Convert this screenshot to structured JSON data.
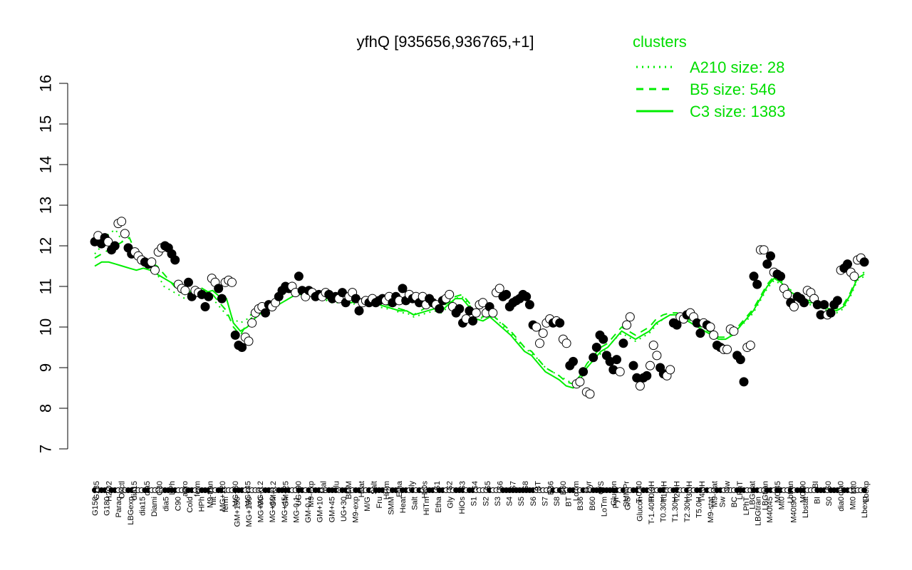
{
  "chart_data": {
    "type": "scatter",
    "title": "yfhQ [935656,936765,+1]",
    "ylim": [
      7,
      16
    ],
    "y_ticks": [
      7,
      8,
      9,
      10,
      11,
      12,
      13,
      14,
      15,
      16
    ],
    "legend": {
      "title": "clusters",
      "position": "top-right",
      "entries": [
        {
          "label": "A210 size: 28",
          "style": "dotted"
        },
        {
          "label": "B5 size: 546",
          "style": "dashed"
        },
        {
          "label": "C3 size: 1383",
          "style": "solid"
        }
      ]
    },
    "colors": {
      "lines": "#00ee00",
      "points_filled": "#000000",
      "points_open": "#ffffff"
    },
    "x_labels_top": [
      "G135",
      "H2O2",
      "Oxctl",
      "dia15",
      "dia5",
      "C30",
      "LPh",
      "aero",
      "ferm",
      "M9-tran",
      "MG+120",
      "MG+60",
      "MG+45",
      "MG-0.2",
      "GM-0.2",
      "GM+25",
      "UG+90",
      "M9-exp",
      "Mal",
      "Glu",
      "BMM",
      "Heat",
      "Salt",
      "HiTm",
      "Etha",
      "Gly",
      "HiOs",
      "S1",
      "S2",
      "S3",
      "S4",
      "S5",
      "S6",
      "S7",
      "S8",
      "BT",
      "B36",
      "B60",
      "LoTm",
      "Pyr",
      "G/S",
      "Glucon",
      "SMMPr",
      "T-0.40",
      "T0.0H",
      "T1.0H",
      "T2.0H",
      "T3.0H",
      "T4.0H",
      "M9-stat",
      "Sw",
      "LPhT",
      "LBGstat",
      "LBGtran",
      "M0t45",
      "Lbtran",
      "M0t90",
      "BI",
      "S0",
      "dia0",
      "Mt0",
      "Lbexp"
    ],
    "x_labels_bottom": [
      "G150",
      "G180",
      "Paraq",
      "LBGexp",
      "dia15",
      "Diami",
      "dia5",
      "C90",
      "Cold",
      "HPh",
      "nit",
      "ferm",
      "GM+150",
      "MG+150",
      "MG+90",
      "MG+60",
      "MG+45",
      "MG-0.1",
      "GM-0.1",
      "GM+10",
      "GM+45",
      "UG+30",
      "M9-exp",
      "M/G",
      "Fru",
      "SMM",
      "Heat",
      "Salt",
      "HiTm",
      "Etha",
      "Gly",
      "HiOs",
      "S1",
      "S2",
      "S3",
      "S4",
      "S5",
      "S6",
      "S7",
      "S8",
      "BT",
      "B36",
      "B60",
      "LoTm",
      "Pyr",
      "G/S",
      "Glucon",
      "T-1.40H",
      "T0.30H",
      "T1.30H",
      "T2.30H",
      "T5.0H",
      "M9-stat",
      "Sw",
      "BC",
      "LPhT",
      "LBGtran",
      "M40t45",
      "Mt0",
      "M40t90",
      "Lbstat",
      "BI",
      "S0",
      "dia0",
      "Mt0",
      "Lbexp"
    ],
    "x_labels_shown": [
      "G150",
      "G135",
      "G180",
      "H2O2",
      "Paraq",
      "Oxctl",
      "LBGexp",
      "dia15",
      "Diami",
      "dia5",
      "C90",
      "C30",
      "Cold",
      "LPh",
      "HPh",
      "aero",
      "nit",
      "ferm",
      "GM+150",
      "M9-tran",
      "MG+150",
      "MG+120",
      "Mal",
      "Fru",
      "Glu",
      "SMM",
      "BMM",
      "Heat",
      "Salt",
      "HiTm",
      "Etha",
      "Gly",
      "HiOs",
      "S1",
      "S2",
      "S3",
      "S4",
      "S5",
      "S6",
      "S7",
      "S8",
      "BT",
      "B36",
      "B60",
      "LoTm",
      "Pyr",
      "G/S",
      "Glucon",
      "SMMPr",
      "T1.0H",
      "T2.0H",
      "T4.0H",
      "M9-stat",
      "BC",
      "Sw",
      "LPhT",
      "LBGtran",
      "LBGstat",
      "M40t45",
      "M0t45",
      "Lbtran",
      "Mt0",
      "M40t90",
      "M0t90",
      "Lbstat",
      "BI",
      "S0",
      "dia0",
      "M0t45",
      "Mt0",
      "Lbexp"
    ],
    "series": [
      {
        "name": "C3 size: 1383",
        "style": "solid",
        "y": [
          11.5,
          11.6,
          11.6,
          11.55,
          11.5,
          11.45,
          11.4,
          11.45,
          11.4,
          11.3,
          11.2,
          11.1,
          11.0,
          10.9,
          10.85,
          10.8,
          10.85,
          10.9,
          10.75,
          10.7,
          10.1,
          9.9,
          10.0,
          10.2,
          10.35,
          10.45,
          10.5,
          10.6,
          10.7,
          10.8,
          10.8,
          10.8,
          10.75,
          10.7,
          10.7,
          10.65,
          10.6,
          10.6,
          10.65,
          10.6,
          10.6,
          10.55,
          10.5,
          10.45,
          10.4,
          10.4,
          10.3,
          10.35,
          10.4,
          10.45,
          10.4,
          10.55,
          10.7,
          10.7,
          10.5,
          10.2,
          10.15,
          10.25,
          10.1,
          9.95,
          9.8,
          9.6,
          9.4,
          9.3,
          9.1,
          8.9,
          8.8,
          8.7,
          8.55,
          8.5,
          8.7,
          9.0,
          9.2,
          9.4,
          9.5,
          9.7,
          9.9,
          9.8,
          9.7,
          9.8,
          9.9,
          10.1,
          10.2,
          10.3,
          10.3,
          10.2,
          10.1,
          10.0,
          9.9,
          9.8,
          9.7,
          9.7,
          9.8,
          10.0,
          10.2,
          10.4,
          10.7,
          11.0,
          11.2,
          11.1,
          10.9,
          10.8,
          10.7,
          10.6,
          10.6,
          10.5,
          10.45,
          10.4,
          10.5,
          10.8,
          11.2,
          11.3
        ]
      },
      {
        "name": "B5 size: 546",
        "style": "dashed",
        "y": [
          11.7,
          11.8,
          11.9,
          12.0,
          12.1,
          12.2,
          11.8,
          11.7,
          11.6,
          11.5,
          11.3,
          11.1,
          10.9,
          10.8,
          10.9,
          11.0,
          10.9,
          10.8,
          10.6,
          10.4,
          10.0,
          9.8,
          10.1,
          10.3,
          10.4,
          10.5,
          10.6,
          10.8,
          10.9,
          10.9,
          10.85,
          10.8,
          10.8,
          10.75,
          10.7,
          10.7,
          10.65,
          10.6,
          10.7,
          10.65,
          10.65,
          10.6,
          10.55,
          10.5,
          10.45,
          10.4,
          10.3,
          10.4,
          10.5,
          10.55,
          10.5,
          10.6,
          10.75,
          10.8,
          10.6,
          10.3,
          10.25,
          10.35,
          10.2,
          10.05,
          9.9,
          9.7,
          9.5,
          9.4,
          9.2,
          9.0,
          8.9,
          8.8,
          8.65,
          8.6,
          8.8,
          9.1,
          9.3,
          9.5,
          9.6,
          9.8,
          10.0,
          9.9,
          9.8,
          9.9,
          10.0,
          10.2,
          10.3,
          10.35,
          10.35,
          10.25,
          10.15,
          10.05,
          9.95,
          9.85,
          9.75,
          9.75,
          9.85,
          10.05,
          10.25,
          10.45,
          10.75,
          11.05,
          11.25,
          11.15,
          10.95,
          10.85,
          10.75,
          10.65,
          10.65,
          10.55,
          10.5,
          10.45,
          10.55,
          10.85,
          11.25,
          11.35
        ]
      },
      {
        "name": "A210 size: 28",
        "style": "dotted",
        "y": [
          11.8,
          12.0,
          12.3,
          12.4,
          12.1,
          11.9,
          11.7,
          11.6,
          11.5,
          11.3,
          11.0,
          10.9,
          10.8,
          10.7,
          10.8,
          10.9,
          10.9,
          10.7,
          10.5,
          10.3,
          10.2,
          10.1,
          10.2,
          10.4,
          10.5,
          10.6,
          10.7,
          10.8,
          10.85,
          10.9,
          10.8,
          10.8,
          10.7,
          10.7,
          10.6,
          10.6,
          10.6,
          10.55,
          10.6,
          10.6,
          10.55,
          10.5,
          10.45,
          10.45,
          10.35,
          10.35,
          10.25,
          10.3,
          10.35,
          10.4,
          10.35,
          10.5,
          10.7,
          10.75,
          10.55,
          10.3,
          10.2,
          10.3,
          10.2,
          10.0,
          9.85,
          9.65,
          9.5,
          9.35,
          9.2,
          9.0,
          8.9,
          8.8,
          8.7,
          8.6,
          8.75,
          9.0,
          9.2,
          9.35,
          9.5,
          9.7,
          9.85,
          9.75,
          9.65,
          9.75,
          9.85,
          10.05,
          10.2,
          10.3,
          10.3,
          10.2,
          10.1,
          10.0,
          9.9,
          9.8,
          9.7,
          9.7,
          9.8,
          10.0,
          10.15,
          10.35,
          10.65,
          10.95,
          11.15,
          11.05,
          10.85,
          10.75,
          10.65,
          10.55,
          10.55,
          10.45,
          10.4,
          10.35,
          10.45,
          10.75,
          11.15,
          11.25
        ]
      }
    ],
    "points": [
      [
        12.1,
        1
      ],
      [
        12.25,
        0
      ],
      [
        12.05,
        1
      ],
      [
        12.2,
        1
      ],
      [
        12.1,
        0
      ],
      [
        11.9,
        1
      ],
      [
        12.0,
        1
      ],
      [
        12.55,
        0
      ],
      [
        12.6,
        0
      ],
      [
        12.3,
        0
      ],
      [
        11.95,
        1
      ],
      [
        11.8,
        1
      ],
      [
        11.85,
        0
      ],
      [
        11.75,
        0
      ],
      [
        11.65,
        0
      ],
      [
        11.6,
        1
      ],
      [
        11.55,
        1
      ],
      [
        11.6,
        0
      ],
      [
        11.4,
        0
      ],
      [
        11.85,
        0
      ],
      [
        11.95,
        0
      ],
      [
        12.0,
        1
      ],
      [
        11.95,
        1
      ],
      [
        11.8,
        1
      ],
      [
        11.65,
        1
      ],
      [
        11.05,
        0
      ],
      [
        10.95,
        0
      ],
      [
        10.9,
        0
      ],
      [
        11.1,
        1
      ],
      [
        10.75,
        1
      ],
      [
        10.9,
        0
      ],
      [
        10.85,
        0
      ],
      [
        10.8,
        1
      ],
      [
        10.5,
        1
      ],
      [
        10.75,
        1
      ],
      [
        11.2,
        0
      ],
      [
        11.1,
        0
      ],
      [
        10.95,
        1
      ],
      [
        10.7,
        1
      ],
      [
        11.1,
        0
      ],
      [
        11.15,
        0
      ],
      [
        11.1,
        0
      ],
      [
        9.8,
        1
      ],
      [
        9.55,
        1
      ],
      [
        9.5,
        1
      ],
      [
        9.75,
        0
      ],
      [
        9.65,
        0
      ],
      [
        10.1,
        0
      ],
      [
        10.35,
        0
      ],
      [
        10.45,
        0
      ],
      [
        10.5,
        0
      ],
      [
        10.35,
        1
      ],
      [
        10.55,
        1
      ],
      [
        10.5,
        0
      ],
      [
        10.6,
        0
      ],
      [
        10.75,
        1
      ],
      [
        10.9,
        1
      ],
      [
        11.0,
        1
      ],
      [
        10.95,
        1
      ],
      [
        11.0,
        0
      ],
      [
        10.85,
        0
      ],
      [
        11.25,
        1
      ],
      [
        10.9,
        1
      ],
      [
        10.75,
        0
      ],
      [
        10.9,
        1
      ],
      [
        10.85,
        0
      ],
      [
        10.75,
        1
      ],
      [
        10.8,
        1
      ],
      [
        10.75,
        0
      ],
      [
        10.85,
        0
      ],
      [
        10.8,
        1
      ],
      [
        10.7,
        1
      ],
      [
        10.75,
        1
      ],
      [
        10.7,
        0
      ],
      [
        10.85,
        1
      ],
      [
        10.6,
        1
      ],
      [
        10.75,
        0
      ],
      [
        10.85,
        0
      ],
      [
        10.7,
        1
      ],
      [
        10.4,
        1
      ],
      [
        10.6,
        0
      ],
      [
        10.65,
        0
      ],
      [
        10.6,
        1
      ],
      [
        10.7,
        0
      ],
      [
        10.6,
        1
      ],
      [
        10.65,
        1
      ],
      [
        10.7,
        1
      ],
      [
        10.65,
        0
      ],
      [
        10.75,
        0
      ],
      [
        10.6,
        1
      ],
      [
        10.75,
        1
      ],
      [
        10.65,
        0
      ],
      [
        10.95,
        1
      ],
      [
        10.65,
        1
      ],
      [
        10.8,
        0
      ],
      [
        10.7,
        1
      ],
      [
        10.75,
        0
      ],
      [
        10.6,
        1
      ],
      [
        10.75,
        0
      ],
      [
        10.55,
        0
      ],
      [
        10.7,
        1
      ],
      [
        10.6,
        1
      ],
      [
        10.55,
        0
      ],
      [
        10.45,
        1
      ],
      [
        10.65,
        1
      ],
      [
        10.7,
        0
      ],
      [
        10.8,
        0
      ],
      [
        10.5,
        0
      ],
      [
        10.35,
        1
      ],
      [
        10.45,
        1
      ],
      [
        10.1,
        1
      ],
      [
        10.2,
        0
      ],
      [
        10.4,
        1
      ],
      [
        10.15,
        1
      ],
      [
        10.35,
        0
      ],
      [
        10.55,
        0
      ],
      [
        10.6,
        0
      ],
      [
        10.35,
        0
      ],
      [
        10.5,
        1
      ],
      [
        10.35,
        0
      ],
      [
        10.85,
        0
      ],
      [
        10.95,
        0
      ],
      [
        10.75,
        1
      ],
      [
        10.8,
        1
      ],
      [
        10.5,
        1
      ],
      [
        10.6,
        1
      ],
      [
        10.65,
        1
      ],
      [
        10.7,
        1
      ],
      [
        10.8,
        1
      ],
      [
        10.75,
        1
      ],
      [
        10.55,
        1
      ],
      [
        10.05,
        1
      ],
      [
        10.0,
        0
      ],
      [
        9.6,
        0
      ],
      [
        9.85,
        0
      ],
      [
        10.1,
        0
      ],
      [
        10.2,
        0
      ],
      [
        10.1,
        1
      ],
      [
        10.15,
        0
      ],
      [
        10.1,
        1
      ],
      [
        9.7,
        0
      ],
      [
        9.6,
        0
      ],
      [
        9.05,
        1
      ],
      [
        9.15,
        1
      ],
      [
        8.6,
        0
      ],
      [
        8.65,
        0
      ],
      [
        8.9,
        1
      ],
      [
        8.4,
        0
      ],
      [
        8.35,
        0
      ],
      [
        9.25,
        1
      ],
      [
        9.5,
        1
      ],
      [
        9.8,
        1
      ],
      [
        9.7,
        1
      ],
      [
        9.3,
        1
      ],
      [
        9.15,
        1
      ],
      [
        8.95,
        1
      ],
      [
        9.2,
        1
      ],
      [
        8.9,
        0
      ],
      [
        9.6,
        1
      ],
      [
        10.05,
        0
      ],
      [
        10.25,
        0
      ],
      [
        9.05,
        1
      ],
      [
        8.75,
        1
      ],
      [
        8.55,
        0
      ],
      [
        8.75,
        1
      ],
      [
        8.8,
        1
      ],
      [
        9.05,
        0
      ],
      [
        9.55,
        0
      ],
      [
        9.3,
        0
      ],
      [
        9.0,
        1
      ],
      [
        8.85,
        1
      ],
      [
        8.8,
        0
      ],
      [
        8.95,
        0
      ],
      [
        10.1,
        1
      ],
      [
        10.05,
        1
      ],
      [
        10.25,
        0
      ],
      [
        10.2,
        0
      ],
      [
        10.3,
        1
      ],
      [
        10.35,
        0
      ],
      [
        10.25,
        0
      ],
      [
        10.1,
        1
      ],
      [
        9.85,
        1
      ],
      [
        10.1,
        0
      ],
      [
        10.05,
        1
      ],
      [
        10.0,
        0
      ],
      [
        9.8,
        0
      ],
      [
        9.55,
        1
      ],
      [
        9.5,
        1
      ],
      [
        9.45,
        0
      ],
      [
        9.45,
        0
      ],
      [
        9.95,
        0
      ],
      [
        9.9,
        0
      ],
      [
        9.3,
        1
      ],
      [
        9.2,
        1
      ],
      [
        8.65,
        1
      ],
      [
        9.5,
        0
      ],
      [
        9.55,
        0
      ],
      [
        11.25,
        1
      ],
      [
        11.05,
        1
      ],
      [
        11.9,
        0
      ],
      [
        11.9,
        0
      ],
      [
        11.55,
        1
      ],
      [
        11.75,
        1
      ],
      [
        11.35,
        0
      ],
      [
        11.3,
        1
      ],
      [
        11.25,
        1
      ],
      [
        10.95,
        0
      ],
      [
        10.8,
        0
      ],
      [
        10.6,
        1
      ],
      [
        10.5,
        0
      ],
      [
        10.75,
        1
      ],
      [
        10.7,
        1
      ],
      [
        10.6,
        1
      ],
      [
        10.9,
        0
      ],
      [
        10.85,
        0
      ],
      [
        10.7,
        0
      ],
      [
        10.55,
        1
      ],
      [
        10.3,
        1
      ],
      [
        10.55,
        1
      ],
      [
        10.3,
        0
      ],
      [
        10.35,
        1
      ],
      [
        10.55,
        1
      ],
      [
        10.65,
        1
      ],
      [
        11.4,
        0
      ],
      [
        11.45,
        1
      ],
      [
        11.55,
        1
      ],
      [
        11.35,
        0
      ],
      [
        11.25,
        0
      ],
      [
        11.65,
        0
      ],
      [
        11.7,
        0
      ],
      [
        11.6,
        1
      ]
    ]
  }
}
